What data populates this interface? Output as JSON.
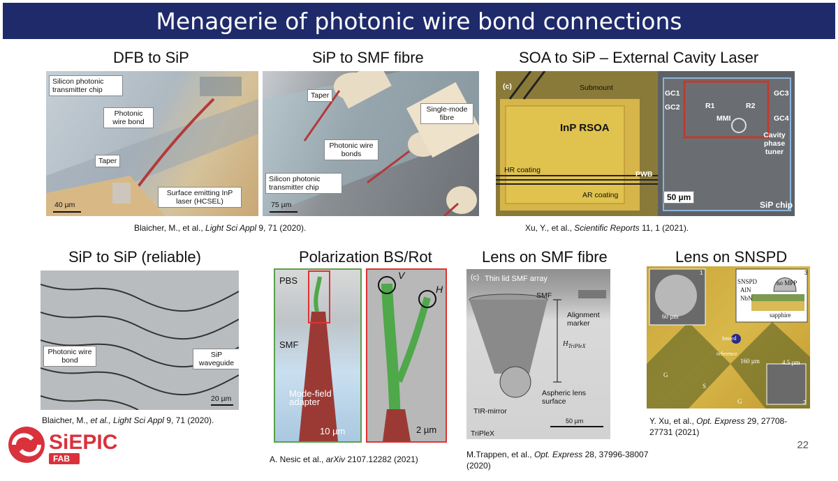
{
  "title": "Menagerie of photonic wire bond connections",
  "page_number": "22",
  "logo": {
    "text": "SiEPIC",
    "sub": "FAB",
    "color": "#d9323c"
  },
  "panels": {
    "dfb": {
      "heading": "DFB to SiP",
      "labels": [
        "Silicon photonic transmitter chip",
        "Photonic wire bond",
        "Taper",
        "Surface emitting InP laser (HCSEL)"
      ],
      "scale": "40 µm"
    },
    "smf": {
      "heading": "SiP to SMF fibre",
      "labels": [
        "Taper",
        "Single-mode fibre",
        "Photonic wire bonds",
        "Silicon photonic transmitter chip"
      ],
      "scale": "75 µm"
    },
    "soa": {
      "heading": "SOA to SiP – External Cavity Laser",
      "tag": "(c)",
      "labels": [
        "Submount",
        "InP RSOA",
        "HR coating",
        "AR coating",
        "PWB",
        "GC1",
        "GC2",
        "GC3",
        "GC4",
        "R1",
        "R2",
        "MMI",
        "Cavity phase tuner",
        "SiP chip"
      ],
      "scale": "50 µm"
    },
    "sip_sip": {
      "heading": "SiP to SiP (reliable)",
      "labels": [
        "Photonic wire bond",
        "SiP waveguide"
      ],
      "scale": "20 µm"
    },
    "pbs": {
      "heading": "Polarization BS/Rot",
      "labels": [
        "PBS",
        "SMF",
        "Mode-field adapter",
        "V",
        "H"
      ],
      "scale_left": "10 µm",
      "scale_right": "2 µm"
    },
    "lens_smf": {
      "heading": "Lens on SMF fibre",
      "tag": "(c)",
      "labels": [
        "Thin lid SMF array",
        "SMF",
        "Alignment marker",
        "H",
        "TriPleX",
        "Aspheric lens surface",
        "TIR-mirror",
        "TriPleX"
      ],
      "scale": "50 µm"
    },
    "snspd": {
      "heading": "Lens on SNSPD",
      "labels": [
        "SNSPD",
        "AlN",
        "NbN",
        "no MPP",
        "sapphire",
        "60 µm",
        "4.5 µm",
        "160 µm",
        "lensed",
        "reference",
        "G",
        "S",
        "G",
        "1",
        "2",
        "3"
      ]
    }
  },
  "citations": {
    "c1": {
      "pre": "Blaicher, M., et al., ",
      "journal": "Light Sci Appl",
      "post": " 9, 71 (2020)."
    },
    "c2": {
      "pre": "Xu, Y., et al., ",
      "journal": "Scientific Reports",
      "post": " 11, 1 (2021)."
    },
    "c3": {
      "pre": "Blaicher, M., ",
      "journal": "et al., Light Sci Appl",
      "post": " 9, 71 (2020)."
    },
    "c4": {
      "pre": "A. Nesic et al., ",
      "journal": "arXiv",
      "post": " 2107.12282 (2021)"
    },
    "c5": {
      "pre": "M.Trappen, et al., ",
      "journal": "Opt. Express",
      "post": " 28, 37996-38007 (2020)"
    },
    "c6": {
      "pre": "Y. Xu, et al., ",
      "journal": "Opt. Express",
      "post": " 29, 27708-27731 (2021)"
    }
  }
}
